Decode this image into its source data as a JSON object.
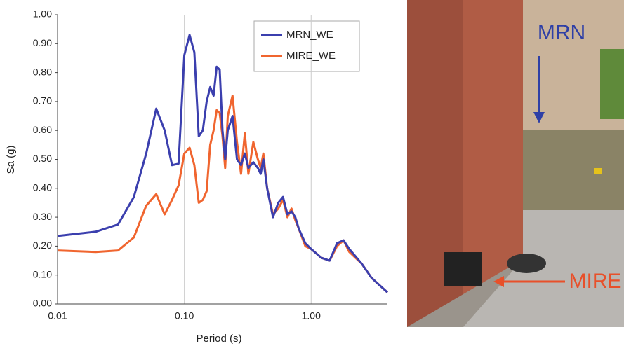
{
  "chart_data": {
    "type": "line",
    "x_label": "Period (s)",
    "y_label": "Sa (g)",
    "x": [
      0.01,
      0.02,
      0.03,
      0.04,
      0.05,
      0.06,
      0.07,
      0.08,
      0.09,
      0.1,
      0.11,
      0.12,
      0.13,
      0.14,
      0.15,
      0.16,
      0.17,
      0.18,
      0.19,
      0.2,
      0.21,
      0.22,
      0.24,
      0.26,
      0.28,
      0.3,
      0.32,
      0.35,
      0.38,
      0.4,
      0.42,
      0.45,
      0.5,
      0.55,
      0.6,
      0.65,
      0.7,
      0.75,
      0.8,
      0.9,
      1.0,
      1.2,
      1.4,
      1.6,
      1.8,
      2.0,
      2.5,
      3.0,
      4.0
    ],
    "series": [
      {
        "name": "MRN_WE",
        "color": "#3b3fae",
        "values": [
          0.235,
          0.25,
          0.275,
          0.37,
          0.52,
          0.675,
          0.6,
          0.48,
          0.485,
          0.86,
          0.93,
          0.87,
          0.58,
          0.6,
          0.7,
          0.75,
          0.72,
          0.82,
          0.81,
          0.6,
          0.5,
          0.6,
          0.65,
          0.5,
          0.48,
          0.52,
          0.47,
          0.49,
          0.47,
          0.45,
          0.5,
          0.4,
          0.3,
          0.35,
          0.37,
          0.31,
          0.32,
          0.3,
          0.26,
          0.21,
          0.19,
          0.16,
          0.15,
          0.21,
          0.22,
          0.19,
          0.14,
          0.09,
          0.04
        ]
      },
      {
        "name": "MIRE_WE",
        "color": "#f0652f",
        "values": [
          0.185,
          0.18,
          0.185,
          0.23,
          0.34,
          0.38,
          0.31,
          0.36,
          0.41,
          0.52,
          0.54,
          0.48,
          0.35,
          0.36,
          0.39,
          0.55,
          0.6,
          0.67,
          0.66,
          0.58,
          0.47,
          0.65,
          0.72,
          0.56,
          0.45,
          0.59,
          0.45,
          0.56,
          0.5,
          0.47,
          0.52,
          0.4,
          0.31,
          0.33,
          0.36,
          0.3,
          0.33,
          0.29,
          0.26,
          0.2,
          0.19,
          0.16,
          0.15,
          0.2,
          0.22,
          0.18,
          0.14,
          0.09,
          0.04
        ]
      }
    ],
    "log_x": true,
    "xlim": [
      0.01,
      4
    ],
    "xticks": [
      0.01,
      {
        "value": 0.1,
        "label": "0.10"
      },
      {
        "value": 1,
        "label": "1.00"
      }
    ],
    "ylim": [
      0,
      1
    ],
    "yticks": [
      {
        "value": 0,
        "label": "0.00"
      },
      {
        "value": 0.1,
        "label": "0.10"
      },
      {
        "value": 0.2,
        "label": "0.20"
      },
      {
        "value": 0.3,
        "label": "0.30"
      },
      {
        "value": 0.4,
        "label": "0.40"
      },
      {
        "value": 0.5,
        "label": "0.50"
      },
      {
        "value": 0.6,
        "label": "0.60"
      },
      {
        "value": 0.7,
        "label": "0.70"
      },
      {
        "value": 0.8,
        "label": "0.80"
      },
      {
        "value": 0.9,
        "label": "0.90"
      },
      {
        "value": 1,
        "label": "1.00"
      }
    ],
    "grid": "x",
    "legend": "top-right"
  },
  "photo": {
    "labels": [
      "MRN",
      "MIRE"
    ]
  }
}
